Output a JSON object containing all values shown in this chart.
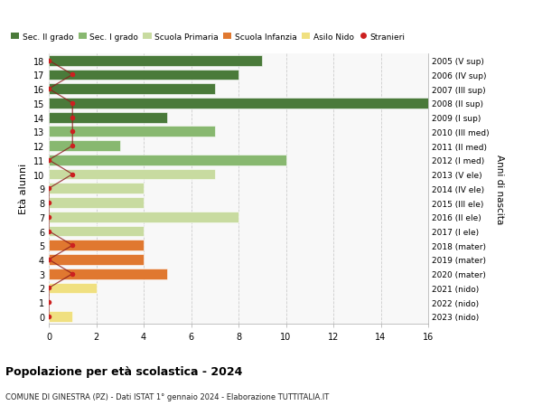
{
  "ages": [
    0,
    1,
    2,
    3,
    4,
    5,
    6,
    7,
    8,
    9,
    10,
    11,
    12,
    13,
    14,
    15,
    16,
    17,
    18
  ],
  "right_labels": [
    "2023 (nido)",
    "2022 (nido)",
    "2021 (nido)",
    "2020 (mater)",
    "2019 (mater)",
    "2018 (mater)",
    "2017 (I ele)",
    "2016 (II ele)",
    "2015 (III ele)",
    "2014 (IV ele)",
    "2013 (V ele)",
    "2012 (I med)",
    "2011 (II med)",
    "2010 (III med)",
    "2009 (I sup)",
    "2008 (II sup)",
    "2007 (III sup)",
    "2006 (IV sup)",
    "2005 (V sup)"
  ],
  "bar_values": [
    1,
    0,
    2,
    5,
    4,
    4,
    4,
    8,
    4,
    4,
    7,
    10,
    3,
    7,
    5,
    16,
    7,
    8,
    9
  ],
  "bar_colors": [
    "#f0e080",
    "#f0e080",
    "#f0e080",
    "#e07830",
    "#e07830",
    "#e07830",
    "#c8dba0",
    "#c8dba0",
    "#c8dba0",
    "#c8dba0",
    "#c8dba0",
    "#88b870",
    "#88b870",
    "#88b870",
    "#4a7a3a",
    "#4a7a3a",
    "#4a7a3a",
    "#4a7a3a",
    "#4a7a3a"
  ],
  "stranieri_values": [
    0,
    0,
    0,
    1,
    0,
    1,
    0,
    0,
    0,
    0,
    1,
    0,
    1,
    1,
    1,
    1,
    0,
    1,
    0
  ],
  "right_ylabel": "Anni di nascita",
  "left_ylabel": "Età alunni",
  "title": "Popolazione per età scolastica - 2024",
  "subtitle": "COMUNE DI GINESTRA (PZ) - Dati ISTAT 1° gennaio 2024 - Elaborazione TUTTITALIA.IT",
  "legend_labels": [
    "Sec. II grado",
    "Sec. I grado",
    "Scuola Primaria",
    "Scuola Infanzia",
    "Asilo Nido",
    "Stranieri"
  ],
  "legend_colors": [
    "#4a7a3a",
    "#88b870",
    "#c8dba0",
    "#e07830",
    "#f0e080",
    "#cc2020"
  ],
  "xlim": [
    0,
    16
  ],
  "ylim": [
    -0.5,
    18.5
  ],
  "bar_height": 0.75,
  "grid_color": "#cccccc",
  "bg_color": "#f8f8f8"
}
